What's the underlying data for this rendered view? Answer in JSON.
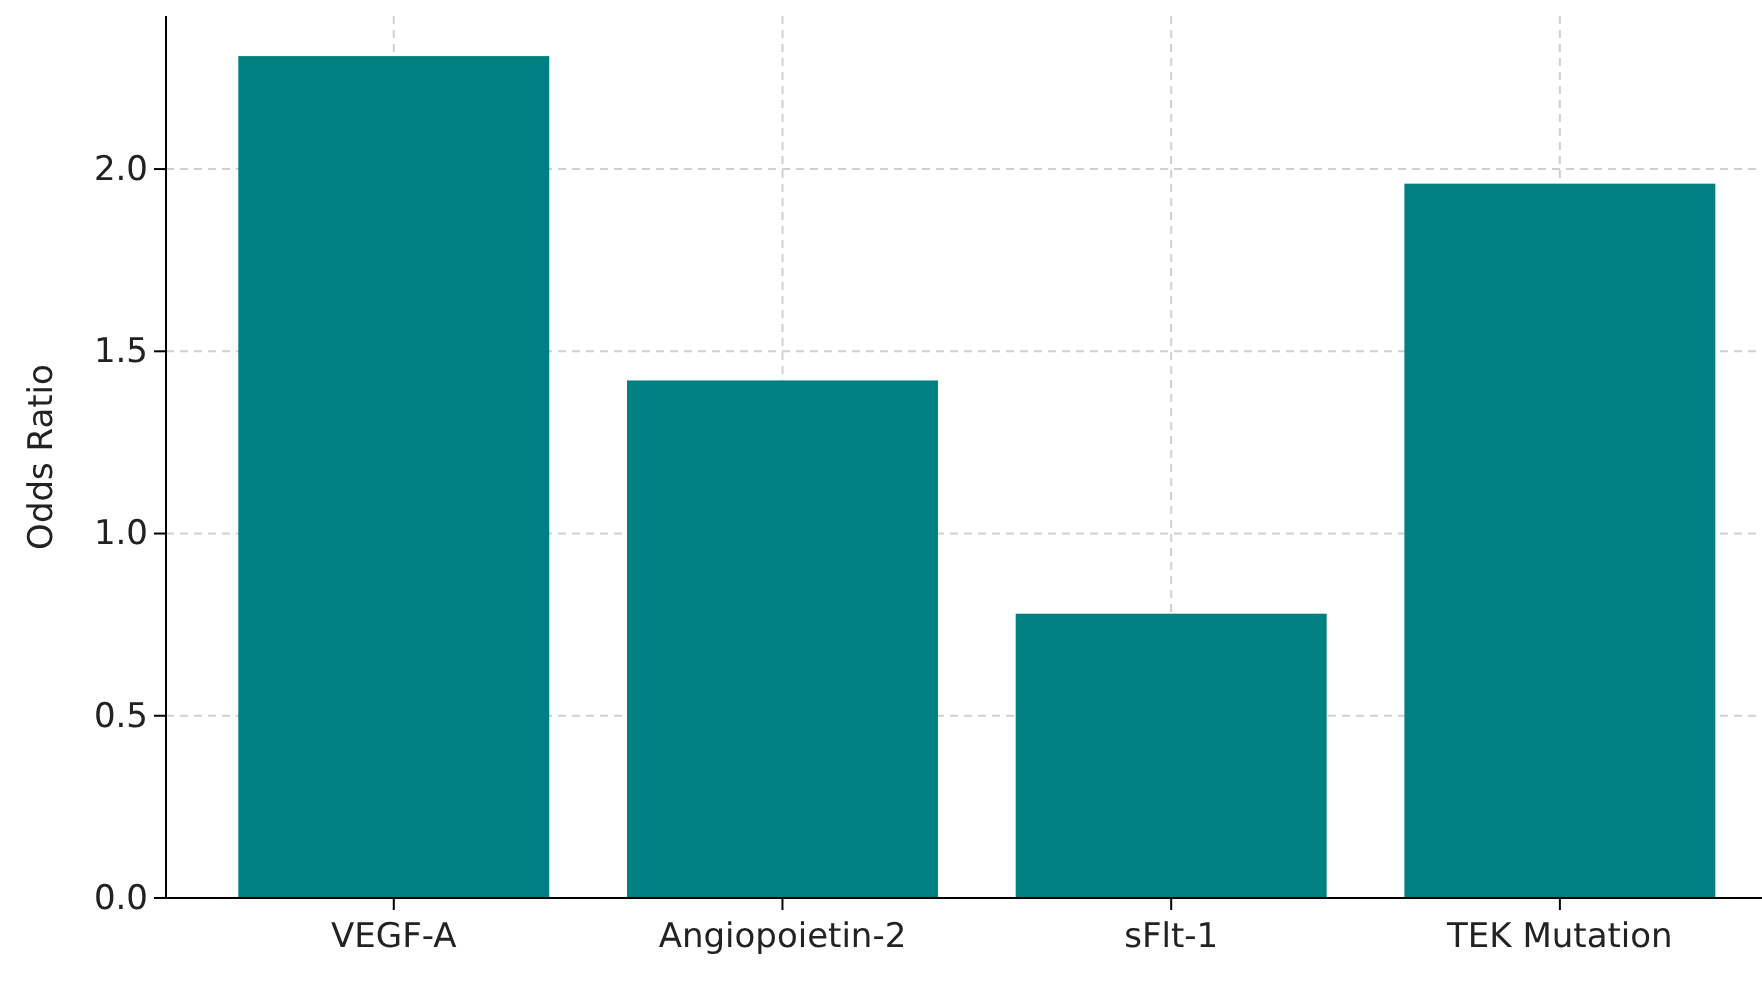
{
  "chart_data": {
    "type": "bar",
    "ylabel": "Odds Ratio",
    "categories": [
      "VEGF-A",
      "Angiopoietin-2",
      "sFlt-1",
      "TEK Mutation"
    ],
    "values": [
      2.31,
      1.42,
      0.78,
      1.96
    ],
    "color": "#008080",
    "ylim": [
      0,
      2.42
    ],
    "yticks": [
      {
        "value": 0,
        "label": "0.0"
      },
      {
        "value": 0.5,
        "label": "0.5"
      },
      {
        "value": 1,
        "label": "1.0"
      },
      {
        "value": 1.5,
        "label": "1.5"
      },
      {
        "value": 2,
        "label": "2.0"
      }
    ],
    "grid": true
  }
}
